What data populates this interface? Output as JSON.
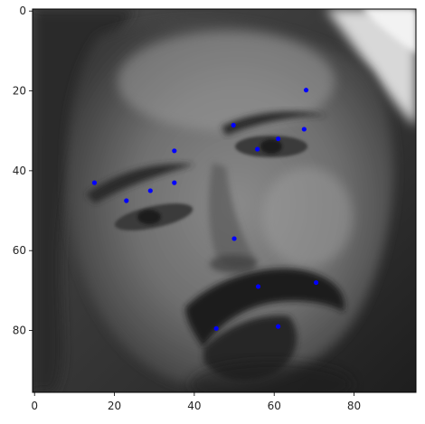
{
  "chart_data": {
    "type": "scatter",
    "title": "",
    "xlabel": "",
    "ylabel": "",
    "xlim": [
      -0.5,
      95.5
    ],
    "ylim": [
      95.5,
      -0.5
    ],
    "y_axis_inverted": true,
    "grid": false,
    "background": "grayscale face photograph (96x96)",
    "x_ticks": [
      0,
      20,
      40,
      60,
      80
    ],
    "y_ticks": [
      0,
      20,
      40,
      60,
      80
    ],
    "marker_color": "#0000ff",
    "series": [
      {
        "name": "facial keypoints",
        "points": [
          {
            "x": 68.0,
            "y": 19.8
          },
          {
            "x": 49.8,
            "y": 28.6
          },
          {
            "x": 67.5,
            "y": 29.6
          },
          {
            "x": 61.0,
            "y": 32.0
          },
          {
            "x": 55.8,
            "y": 34.6
          },
          {
            "x": 35.0,
            "y": 35.0
          },
          {
            "x": 15.0,
            "y": 43.0
          },
          {
            "x": 35.0,
            "y": 43.0
          },
          {
            "x": 29.0,
            "y": 45.0
          },
          {
            "x": 23.0,
            "y": 47.5
          },
          {
            "x": 50.0,
            "y": 57.0
          },
          {
            "x": 70.5,
            "y": 68.0
          },
          {
            "x": 56.0,
            "y": 69.0
          },
          {
            "x": 61.0,
            "y": 79.0
          },
          {
            "x": 45.5,
            "y": 79.5
          }
        ]
      }
    ]
  }
}
